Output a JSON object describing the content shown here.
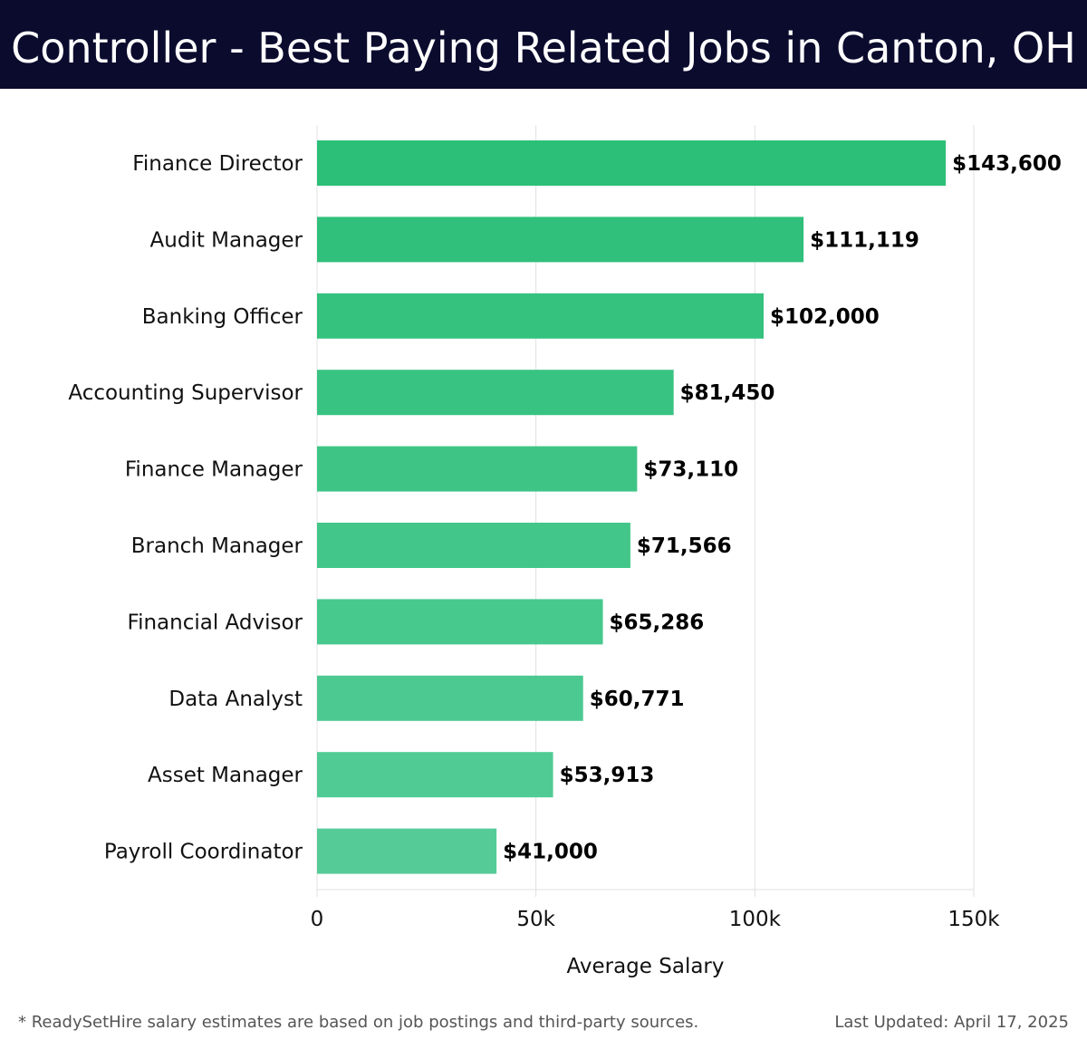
{
  "header": {
    "title": "Controller - Best Paying Related Jobs in Canton, OH"
  },
  "footer": {
    "note": "* ReadySetHire salary estimates are based on job postings and third-party sources.",
    "updated": "Last Updated: April 17, 2025"
  },
  "colors": {
    "header_bg": "#0b0b2e",
    "bar_top": "#2bbf77",
    "bar_bottom": "#55cc98",
    "grid": "#e0e0e0",
    "label": "#111111"
  },
  "chart_data": {
    "type": "bar",
    "orientation": "horizontal",
    "categories": [
      "Finance Director",
      "Audit Manager",
      "Banking Officer",
      "Accounting Supervisor",
      "Finance Manager",
      "Branch Manager",
      "Financial Advisor",
      "Data Analyst",
      "Asset Manager",
      "Payroll Coordinator"
    ],
    "values": [
      143600,
      111119,
      102000,
      81450,
      73110,
      71566,
      65286,
      60771,
      53913,
      41000
    ],
    "value_labels": [
      "$143,600",
      "$111,119",
      "$102,000",
      "$81,450",
      "$73,110",
      "$71,566",
      "$65,286",
      "$60,771",
      "$53,913",
      "$41,000"
    ],
    "xlabel": "Average Salary",
    "xlim": [
      0,
      150000
    ],
    "xticks": [
      0,
      50000,
      100000,
      150000
    ],
    "xtick_labels": [
      "0",
      "50k",
      "100k",
      "150k"
    ],
    "grid": true
  }
}
